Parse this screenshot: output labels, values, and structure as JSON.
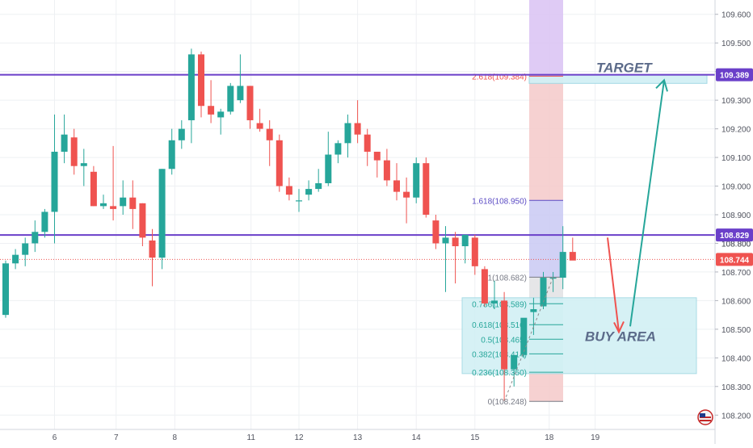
{
  "chart_data": {
    "type": "candlestick",
    "y_axis": {
      "min": 108.15,
      "max": 109.65,
      "ticks": [
        "108.200",
        "108.300",
        "108.400",
        "108.500",
        "108.600",
        "108.700",
        "108.800",
        "108.900",
        "109.000",
        "109.100",
        "109.200",
        "109.300",
        "109.400",
        "109.500",
        "109.600"
      ]
    },
    "x_axis": {
      "ticks": [
        {
          "label": "6",
          "index": 5
        },
        {
          "label": "7",
          "index": 11.3
        },
        {
          "label": "8",
          "index": 17.3
        },
        {
          "label": "11",
          "index": 25.1
        },
        {
          "label": "12",
          "index": 30
        },
        {
          "label": "13",
          "index": 36
        },
        {
          "label": "14",
          "index": 42
        },
        {
          "label": "15",
          "index": 48
        },
        {
          "label": "18",
          "index": 55.6
        },
        {
          "label": "19",
          "index": 60.3
        }
      ]
    },
    "candles": [
      {
        "o": 108.55,
        "h": 108.74,
        "l": 108.54,
        "c": 108.73
      },
      {
        "o": 108.73,
        "h": 108.78,
        "l": 108.71,
        "c": 108.76
      },
      {
        "o": 108.76,
        "h": 108.82,
        "l": 108.72,
        "c": 108.8
      },
      {
        "o": 108.8,
        "h": 108.88,
        "l": 108.77,
        "c": 108.84
      },
      {
        "o": 108.84,
        "h": 108.92,
        "l": 108.82,
        "c": 108.91
      },
      {
        "o": 108.91,
        "h": 109.25,
        "l": 108.8,
        "c": 109.12
      },
      {
        "o": 109.12,
        "h": 109.25,
        "l": 109.08,
        "c": 109.18
      },
      {
        "o": 109.17,
        "h": 109.2,
        "l": 109.04,
        "c": 109.07
      },
      {
        "o": 109.07,
        "h": 109.13,
        "l": 109.0,
        "c": 109.08
      },
      {
        "o": 109.05,
        "h": 109.07,
        "l": 108.93,
        "c": 108.93
      },
      {
        "o": 108.93,
        "h": 108.97,
        "l": 108.92,
        "c": 108.94
      },
      {
        "o": 108.93,
        "h": 109.14,
        "l": 108.88,
        "c": 108.92
      },
      {
        "o": 108.93,
        "h": 109.02,
        "l": 108.9,
        "c": 108.96
      },
      {
        "o": 108.96,
        "h": 109.02,
        "l": 108.85,
        "c": 108.92
      },
      {
        "o": 108.94,
        "h": 108.94,
        "l": 108.79,
        "c": 108.82
      },
      {
        "o": 108.81,
        "h": 108.85,
        "l": 108.65,
        "c": 108.75
      },
      {
        "o": 108.75,
        "h": 109.06,
        "l": 108.71,
        "c": 109.06
      },
      {
        "o": 109.06,
        "h": 109.2,
        "l": 109.04,
        "c": 109.16
      },
      {
        "o": 109.16,
        "h": 109.23,
        "l": 109.13,
        "c": 109.2
      },
      {
        "o": 109.23,
        "h": 109.48,
        "l": 109.15,
        "c": 109.46
      },
      {
        "o": 109.46,
        "h": 109.47,
        "l": 109.24,
        "c": 109.28
      },
      {
        "o": 109.28,
        "h": 109.37,
        "l": 109.22,
        "c": 109.25
      },
      {
        "o": 109.24,
        "h": 109.27,
        "l": 109.18,
        "c": 109.26
      },
      {
        "o": 109.26,
        "h": 109.36,
        "l": 109.25,
        "c": 109.35
      },
      {
        "o": 109.3,
        "h": 109.46,
        "l": 109.29,
        "c": 109.35
      },
      {
        "o": 109.35,
        "h": 109.35,
        "l": 109.2,
        "c": 109.23
      },
      {
        "o": 109.22,
        "h": 109.27,
        "l": 109.19,
        "c": 109.2
      },
      {
        "o": 109.2,
        "h": 109.23,
        "l": 109.07,
        "c": 109.16
      },
      {
        "o": 109.16,
        "h": 109.18,
        "l": 108.98,
        "c": 109.0
      },
      {
        "o": 109.0,
        "h": 109.03,
        "l": 108.95,
        "c": 108.97
      },
      {
        "o": 108.95,
        "h": 108.99,
        "l": 108.91,
        "c": 108.95
      },
      {
        "o": 108.97,
        "h": 109.02,
        "l": 108.95,
        "c": 108.99
      },
      {
        "o": 108.99,
        "h": 109.06,
        "l": 108.98,
        "c": 109.01
      },
      {
        "o": 109.01,
        "h": 109.19,
        "l": 109.0,
        "c": 109.11
      },
      {
        "o": 109.11,
        "h": 109.16,
        "l": 109.08,
        "c": 109.15
      },
      {
        "o": 109.15,
        "h": 109.25,
        "l": 109.1,
        "c": 109.22
      },
      {
        "o": 109.22,
        "h": 109.3,
        "l": 109.15,
        "c": 109.18
      },
      {
        "o": 109.18,
        "h": 109.2,
        "l": 109.07,
        "c": 109.12
      },
      {
        "o": 109.12,
        "h": 109.12,
        "l": 109.03,
        "c": 109.09
      },
      {
        "o": 109.09,
        "h": 109.13,
        "l": 109.0,
        "c": 109.02
      },
      {
        "o": 109.02,
        "h": 109.08,
        "l": 108.95,
        "c": 108.98
      },
      {
        "o": 108.98,
        "h": 109.03,
        "l": 108.87,
        "c": 108.96
      },
      {
        "o": 108.96,
        "h": 109.1,
        "l": 108.94,
        "c": 109.08
      },
      {
        "o": 109.08,
        "h": 109.1,
        "l": 108.89,
        "c": 108.9
      },
      {
        "o": 108.88,
        "h": 108.9,
        "l": 108.78,
        "c": 108.8
      },
      {
        "o": 108.8,
        "h": 108.86,
        "l": 108.63,
        "c": 108.82
      },
      {
        "o": 108.82,
        "h": 108.84,
        "l": 108.66,
        "c": 108.79
      },
      {
        "o": 108.79,
        "h": 108.83,
        "l": 108.73,
        "c": 108.83
      },
      {
        "o": 108.82,
        "h": 108.83,
        "l": 108.69,
        "c": 108.72
      },
      {
        "o": 108.71,
        "h": 108.72,
        "l": 108.58,
        "c": 108.59
      },
      {
        "o": 108.59,
        "h": 108.67,
        "l": 108.57,
        "c": 108.6
      },
      {
        "o": 108.6,
        "h": 108.63,
        "l": 108.25,
        "c": 108.36
      },
      {
        "o": 108.36,
        "h": 108.4,
        "l": 108.3,
        "c": 108.41
      },
      {
        "o": 108.41,
        "h": 108.53,
        "l": 108.4,
        "c": 108.54
      },
      {
        "o": 108.56,
        "h": 108.61,
        "l": 108.48,
        "c": 108.57
      },
      {
        "o": 108.58,
        "h": 108.7,
        "l": 108.57,
        "c": 108.68
      },
      {
        "o": 108.68,
        "h": 108.7,
        "l": 108.63,
        "c": 108.68
      },
      {
        "o": 108.68,
        "h": 108.86,
        "l": 108.64,
        "c": 108.77
      },
      {
        "o": 108.77,
        "h": 108.82,
        "l": 108.75,
        "c": 108.74
      }
    ],
    "price_labels": [
      {
        "value": 109.389,
        "text": "109.389",
        "color": "#6a3fc9"
      },
      {
        "value": 108.829,
        "text": "108.829",
        "color": "#6a3fc9"
      },
      {
        "value": 108.744,
        "text": "108.744",
        "color": "#ef5350"
      }
    ],
    "hidden_tick": "108.800",
    "horizontal_lines": [
      {
        "value": 109.389,
        "color": "#6a3fc9",
        "style": "solid"
      },
      {
        "value": 108.829,
        "color": "#6a3fc9",
        "style": "solid"
      },
      {
        "value": 108.744,
        "color": "#ef5350",
        "style": "dotted"
      }
    ],
    "fib_levels": [
      {
        "ratio_label": "2.618(109.384)",
        "value": 109.384,
        "color": "#ef5350"
      },
      {
        "ratio_label": "1.618(108.950)",
        "value": 108.95,
        "color": "#5b4bc4"
      },
      {
        "ratio_label": "1(108.682)",
        "value": 108.682,
        "color": "#787b86"
      },
      {
        "ratio_label": "0.786(108.589)",
        "value": 108.589,
        "color": "#26a69a"
      },
      {
        "ratio_label": "0.618(108.516)",
        "value": 108.516,
        "color": "#26a69a"
      },
      {
        "ratio_label": "0.5(108.465)",
        "value": 108.465,
        "color": "#26a69a"
      },
      {
        "ratio_label": "0.382(108.414)",
        "value": 108.414,
        "color": "#26a69a"
      },
      {
        "ratio_label": "0.236(108.350)",
        "value": 108.35,
        "color": "#26a69a"
      },
      {
        "ratio_label": "0(108.248)",
        "value": 108.248,
        "color": "#787b86"
      }
    ],
    "annotations": {
      "target": "TARGET",
      "buy_area": "BUY AREA"
    },
    "colors": {
      "up": "#26a69a",
      "down": "#ef5350",
      "level_line": "#6a3fc9",
      "buy_box": "#d2f0f5",
      "arrow_up": "#26a69a",
      "arrow_down": "#ef5350"
    },
    "grid": true
  }
}
